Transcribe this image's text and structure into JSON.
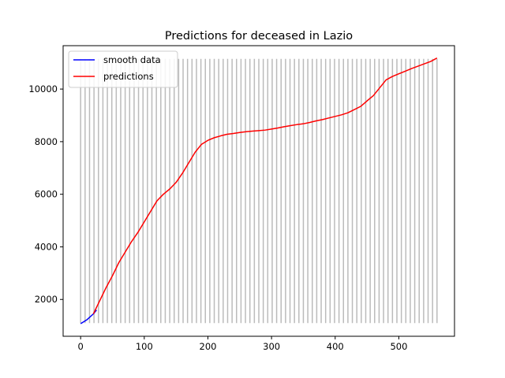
{
  "chart_data": {
    "type": "line",
    "title": "Predictions for deceased in Lazio",
    "xlabel": "",
    "ylabel": "",
    "xlim": [
      -27.5,
      587.5
    ],
    "ylim": [
      600,
      11650
    ],
    "x_ticks": [
      0,
      100,
      200,
      300,
      400,
      500
    ],
    "y_ticks": [
      2000,
      4000,
      6000,
      8000,
      10000
    ],
    "grid": false,
    "legend_position": "top-left",
    "vlines": {
      "color": "#bbbbbb",
      "ymin": 1100,
      "ymax": 11150,
      "x": [
        0,
        7,
        14,
        21,
        28,
        35,
        42,
        49,
        56,
        63,
        70,
        77,
        84,
        91,
        98,
        105,
        112,
        119,
        126,
        133,
        140,
        147,
        154,
        161,
        168,
        175,
        182,
        189,
        196,
        203,
        210,
        217,
        224,
        231,
        238,
        245,
        252,
        259,
        266,
        273,
        280,
        287,
        294,
        301,
        308,
        315,
        322,
        329,
        336,
        343,
        350,
        357,
        364,
        371,
        378,
        385,
        392,
        399,
        406,
        413,
        420,
        427,
        434,
        441,
        448,
        455,
        462,
        469,
        476,
        483,
        490,
        497,
        504,
        511,
        518,
        525,
        532,
        539,
        546,
        553,
        560
      ]
    },
    "series": [
      {
        "name": "smooth data",
        "color": "#0000ff",
        "x": [
          0,
          10,
          20,
          25
        ],
        "y": [
          1080,
          1230,
          1450,
          1600
        ]
      },
      {
        "name": "predictions",
        "color": "#ff0000",
        "x": [
          20,
          30,
          40,
          50,
          60,
          70,
          80,
          90,
          100,
          110,
          120,
          130,
          140,
          150,
          160,
          170,
          180,
          190,
          200,
          210,
          220,
          230,
          240,
          250,
          260,
          270,
          280,
          290,
          300,
          310,
          320,
          330,
          340,
          350,
          360,
          370,
          380,
          390,
          400,
          410,
          420,
          430,
          440,
          450,
          460,
          470,
          480,
          490,
          500,
          510,
          520,
          530,
          540,
          550,
          560
        ],
        "y": [
          1450,
          1950,
          2450,
          2900,
          3400,
          3800,
          4200,
          4550,
          4950,
          5350,
          5750,
          6000,
          6200,
          6450,
          6800,
          7200,
          7600,
          7900,
          8050,
          8150,
          8220,
          8280,
          8310,
          8350,
          8380,
          8400,
          8420,
          8440,
          8480,
          8520,
          8570,
          8610,
          8650,
          8680,
          8730,
          8790,
          8840,
          8900,
          8960,
          9020,
          9100,
          9220,
          9340,
          9550,
          9750,
          10050,
          10350,
          10480,
          10580,
          10680,
          10780,
          10870,
          10960,
          11050,
          11180
        ]
      }
    ]
  }
}
